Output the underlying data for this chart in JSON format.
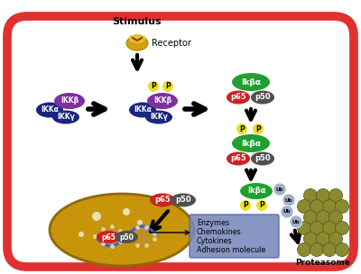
{
  "bg_color": "#ffffff",
  "border_color": "#e03030",
  "stimulus_text": "Stimulus",
  "receptor_text": "Receptor",
  "ikkb_text": "IKKβ",
  "ikka_text": "IKKα",
  "ikky_text": "IKKγ",
  "p65_text": "p65",
  "p50_text": "p50",
  "ikba_text": "Ikβα",
  "proteasome_text": "Proteasome",
  "box_text": [
    "Enzymes",
    "Chemokines",
    "Cytokines",
    "Adhesion molecule"
  ],
  "nucleus_color": "#c8940a",
  "nucleus_edge": "#906808",
  "colors": {
    "blue_dark": "#1a2580",
    "purple": "#8030a0",
    "yellow": "#e8e020",
    "green": "#20a030",
    "red": "#d02020",
    "gray": "#505050",
    "light_blue_ub": "#a0b0cc",
    "olive": "#8a8a30",
    "olive_dark": "#606020"
  }
}
